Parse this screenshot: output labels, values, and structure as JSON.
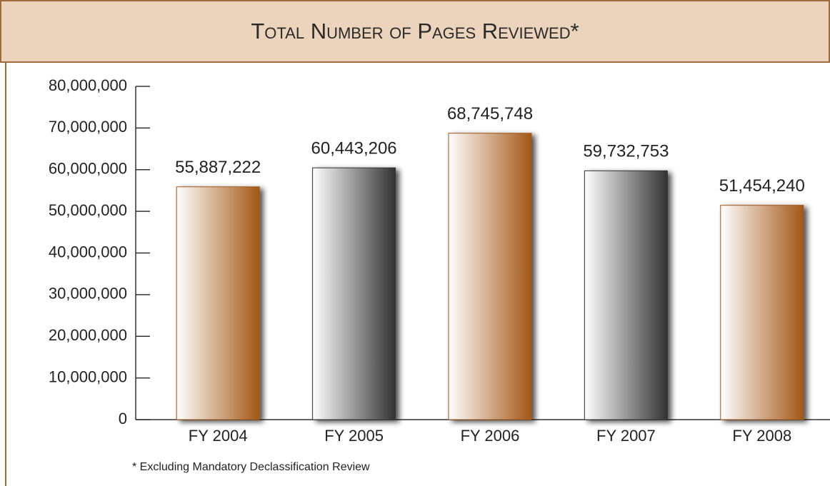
{
  "chart_data": {
    "type": "bar",
    "title": "Total Number of Pages Reviewed*",
    "footnote": "* Excluding Mandatory Declassification Review",
    "categories": [
      "FY 2004",
      "FY 2005",
      "FY 2006",
      "FY 2007",
      "FY 2008"
    ],
    "values": [
      55887222,
      60443206,
      68745748,
      59732753,
      51454240
    ],
    "value_labels": [
      "55,887,222",
      "60,443,206",
      "68,745,748",
      "59,732,753",
      "51,454,240"
    ],
    "colors": [
      "#a35716",
      "#333333",
      "#a35716",
      "#333333",
      "#a35716"
    ],
    "ylim": [
      0,
      80000000
    ],
    "yticks": [
      0,
      {
        "value": 10000000,
        "label": "10,000,000"
      },
      {
        "value": 20000000,
        "label": "20,000,000"
      },
      {
        "value": 30000000,
        "label": "30,000,000"
      },
      {
        "value": 40000000,
        "label": "40,000,000"
      },
      {
        "value": 50000000,
        "label": "50,000,000"
      },
      {
        "value": 60000000,
        "label": "60,000,000"
      },
      {
        "value": 70000000,
        "label": "70,000,000"
      },
      {
        "value": 80000000,
        "label": "80,000,000"
      }
    ]
  }
}
